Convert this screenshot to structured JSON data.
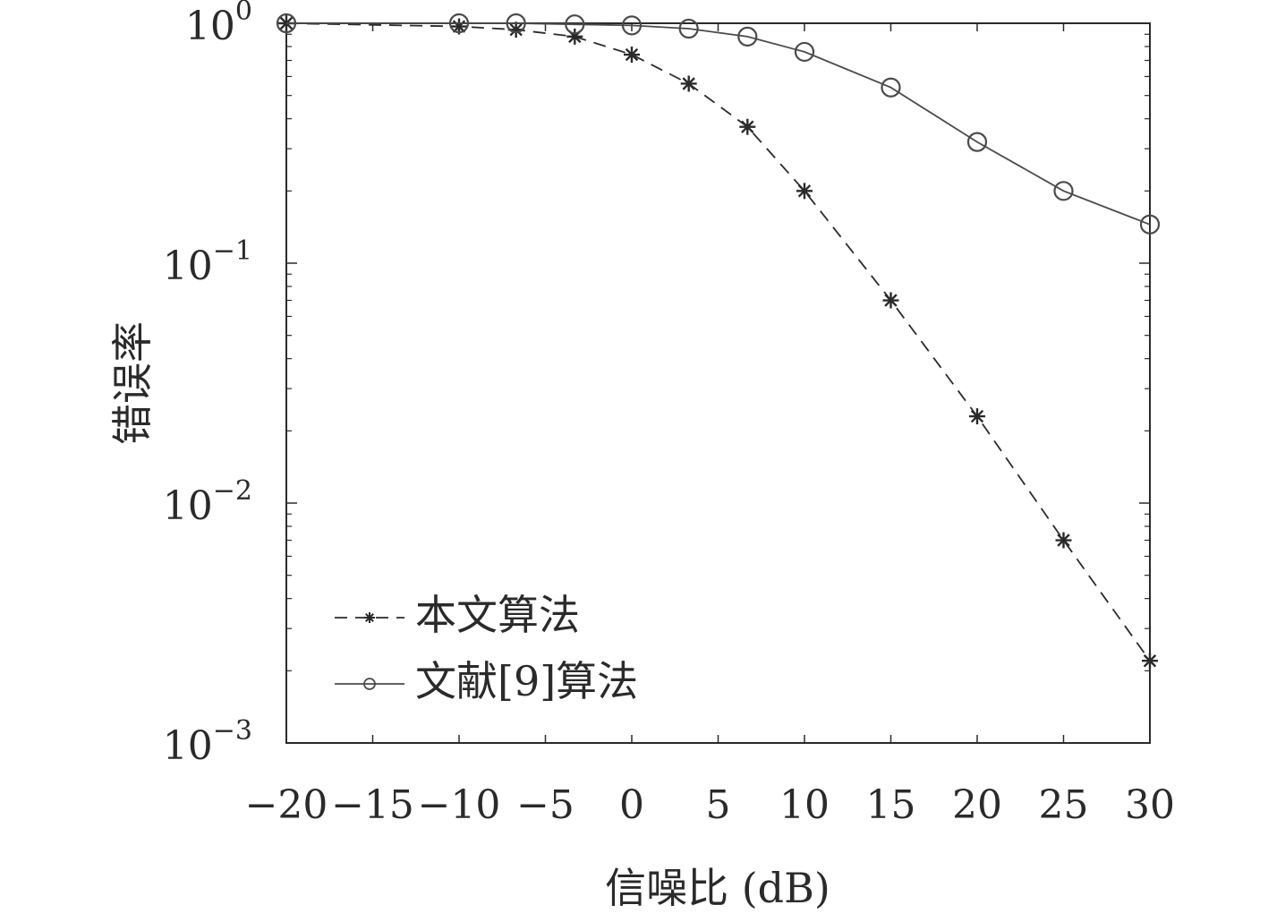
{
  "chart_data": {
    "type": "line",
    "xlabel": "信噪比 (dB)",
    "ylabel": "错误率",
    "x_ticks": [
      -20,
      -15,
      -10,
      -5,
      0,
      5,
      10,
      15,
      20,
      25,
      30
    ],
    "x_tick_labels": [
      "−20",
      "−15",
      "−10",
      "−5",
      "0",
      "5",
      "10",
      "15",
      "20",
      "25",
      "30"
    ],
    "xlim": [
      -20,
      30
    ],
    "y_scale": "log",
    "ylim": [
      0.001,
      1
    ],
    "y_ticks": [
      {
        "value": 1,
        "base": "10",
        "exp": "0"
      },
      {
        "value": 0.1,
        "base": "10",
        "exp": "−1"
      },
      {
        "value": 0.01,
        "base": "10",
        "exp": "−2"
      },
      {
        "value": 0.001,
        "base": "10",
        "exp": "−3"
      }
    ],
    "grid": false,
    "legend_position": "bottom-left",
    "series": [
      {
        "name": "本文算法",
        "line_style": "dashed",
        "marker": "asterisk",
        "color": "#2a2a2a",
        "x": [
          -20,
          -10,
          -6.7,
          -3.3,
          0,
          3.3,
          6.7,
          10,
          15,
          20,
          25,
          30
        ],
        "y": [
          1.0,
          0.97,
          0.94,
          0.88,
          0.74,
          0.56,
          0.37,
          0.2,
          0.07,
          0.023,
          0.007,
          0.0022
        ]
      },
      {
        "name": "文献[9]算法",
        "line_style": "solid",
        "marker": "circle",
        "color": "#4a4a4a",
        "x": [
          -20,
          -10,
          -6.7,
          -3.3,
          0,
          3.3,
          6.7,
          10,
          15,
          20,
          25,
          30
        ],
        "y": [
          1.0,
          1.0,
          1.0,
          0.99,
          0.98,
          0.95,
          0.88,
          0.76,
          0.54,
          0.32,
          0.2,
          0.145
        ]
      }
    ]
  }
}
